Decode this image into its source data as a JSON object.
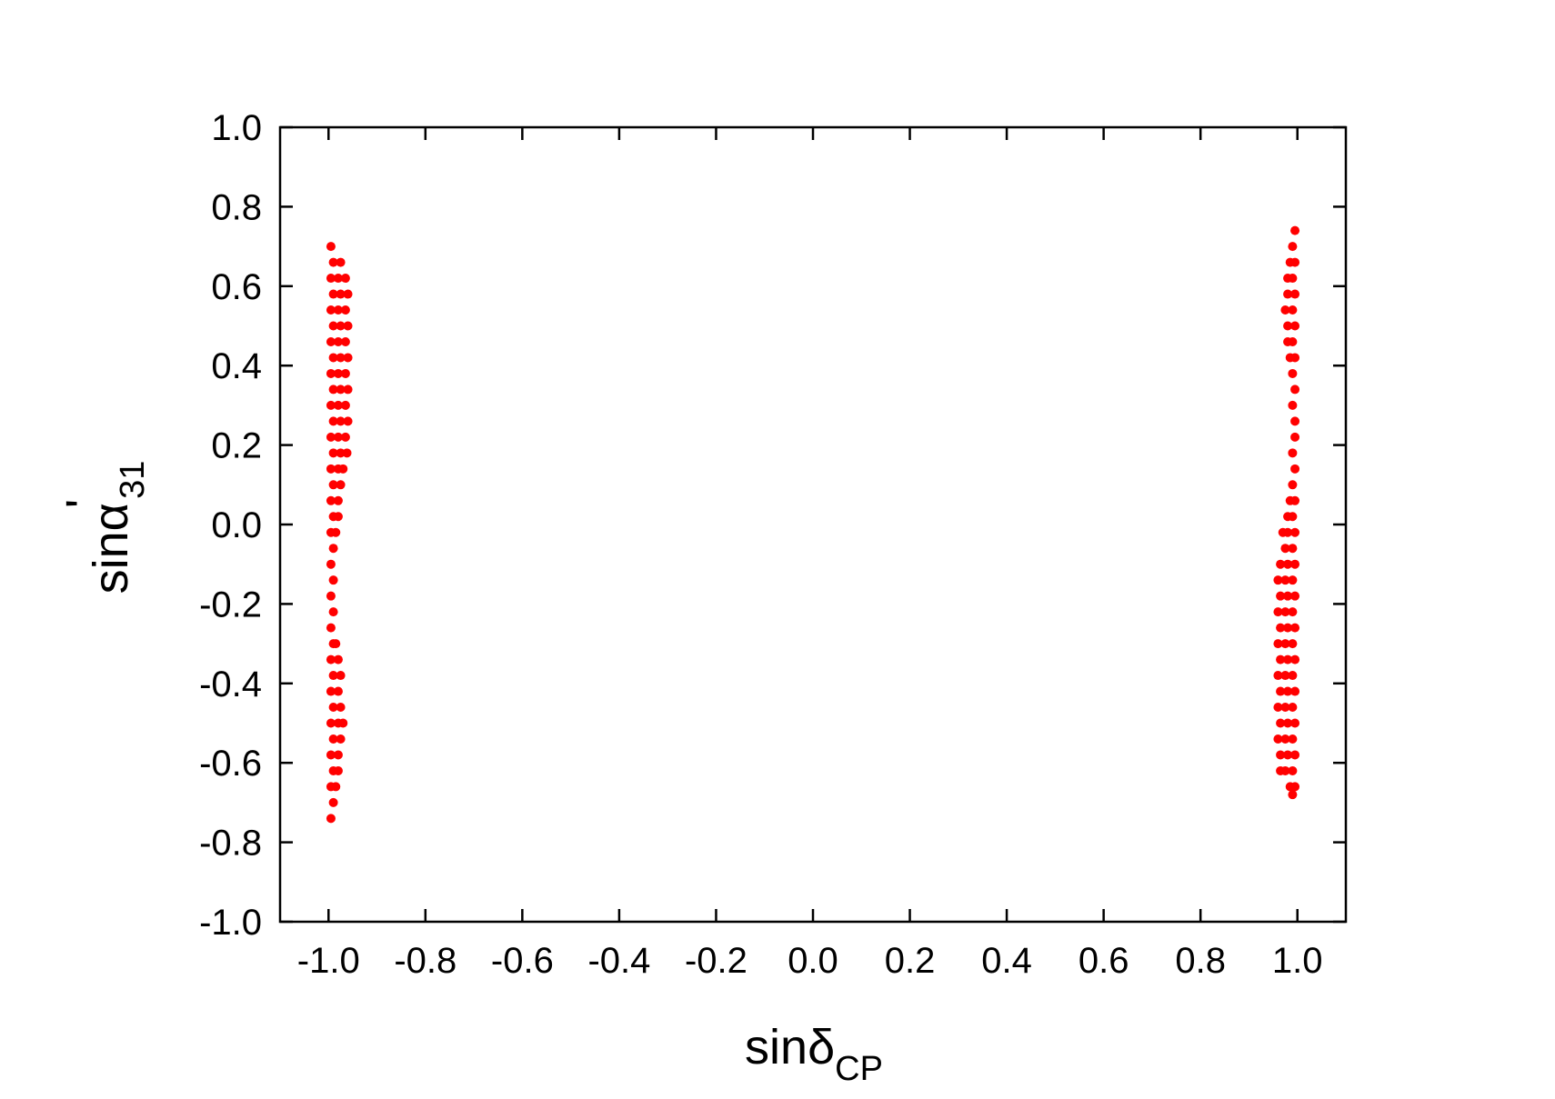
{
  "chart_data": {
    "type": "scatter",
    "x_label": "sinδ",
    "x_label_sub": "CP",
    "y_label": "sinα",
    "y_label_prime": "'",
    "y_label_sub": "31",
    "xlim": [
      -1.1,
      1.1
    ],
    "ylim": [
      -1.0,
      1.0
    ],
    "xticks": [
      {
        "value": -1.0,
        "label": "-1.0"
      },
      -0.8,
      -0.6,
      -0.4,
      -0.2,
      {
        "value": 0,
        "label": "0.0"
      },
      0.2,
      0.4,
      0.6,
      0.8,
      {
        "value": 1.0,
        "label": "1.0"
      }
    ],
    "yticks": [
      {
        "value": -1.0,
        "label": "-1.0"
      },
      -0.8,
      -0.6,
      -0.4,
      -0.2,
      {
        "value": 0,
        "label": "0.0"
      },
      0.2,
      0.4,
      0.6,
      0.8,
      {
        "value": 1.0,
        "label": "1.0"
      }
    ],
    "grid": false,
    "series": [
      {
        "color": "#ff0000",
        "x": [
          -0.995,
          -0.99,
          -0.975,
          -0.995,
          -0.98,
          -0.965,
          -0.99,
          -0.975,
          -0.96,
          -0.995,
          -0.98,
          -0.965,
          -0.99,
          -0.975,
          -0.96,
          -0.995,
          -0.98,
          -0.965,
          -0.99,
          -0.975,
          -0.96,
          -0.995,
          -0.98,
          -0.965,
          -0.99,
          -0.975,
          -0.96,
          -0.995,
          -0.98,
          -0.965,
          -0.99,
          -0.975,
          -0.96,
          -0.995,
          -0.98,
          -0.965,
          -0.99,
          -0.975,
          -0.962,
          -0.995,
          -0.98,
          -0.97,
          -0.99,
          -0.975,
          -0.995,
          -0.98,
          -0.99,
          -0.98,
          -0.995,
          -0.985,
          -0.99,
          -0.995,
          -0.99,
          -0.995,
          -0.99,
          -0.995,
          -0.99,
          -0.985,
          -0.995,
          -0.98,
          -0.99,
          -0.975,
          -0.995,
          -0.98,
          -0.99,
          -0.975,
          -0.995,
          -0.98,
          -0.97,
          -0.99,
          -0.975,
          -0.995,
          -0.98,
          -0.99,
          -0.98,
          -0.995,
          -0.985,
          -0.99,
          -0.995
        ],
        "y": [
          0.7,
          0.66,
          0.66,
          0.62,
          0.62,
          0.62,
          0.58,
          0.58,
          0.58,
          0.54,
          0.54,
          0.54,
          0.5,
          0.5,
          0.5,
          0.46,
          0.46,
          0.46,
          0.42,
          0.42,
          0.42,
          0.38,
          0.38,
          0.38,
          0.34,
          0.34,
          0.34,
          0.3,
          0.3,
          0.3,
          0.26,
          0.26,
          0.26,
          0.22,
          0.22,
          0.22,
          0.18,
          0.18,
          0.18,
          0.14,
          0.14,
          0.14,
          0.1,
          0.1,
          0.06,
          0.06,
          0.02,
          0.02,
          -0.02,
          -0.02,
          -0.06,
          -0.1,
          -0.14,
          -0.18,
          -0.22,
          -0.26,
          -0.3,
          -0.3,
          -0.34,
          -0.34,
          -0.38,
          -0.38,
          -0.42,
          -0.42,
          -0.46,
          -0.46,
          -0.5,
          -0.5,
          -0.5,
          -0.54,
          -0.54,
          -0.58,
          -0.58,
          -0.62,
          -0.62,
          -0.66,
          -0.66,
          -0.7,
          -0.74
        ]
      },
      {
        "color": "#ff0000",
        "x": [
          0.995,
          0.99,
          0.995,
          0.985,
          0.99,
          0.98,
          0.995,
          0.98,
          0.99,
          0.975,
          0.995,
          0.98,
          0.99,
          0.98,
          0.995,
          0.985,
          0.99,
          0.995,
          0.99,
          0.995,
          0.995,
          0.99,
          0.995,
          0.99,
          0.995,
          0.985,
          0.99,
          0.98,
          0.995,
          0.98,
          0.97,
          0.99,
          0.975,
          0.995,
          0.98,
          0.965,
          0.99,
          0.975,
          0.96,
          0.995,
          0.98,
          0.965,
          0.99,
          0.975,
          0.96,
          0.995,
          0.98,
          0.965,
          0.99,
          0.975,
          0.96,
          0.995,
          0.98,
          0.965,
          0.99,
          0.975,
          0.96,
          0.995,
          0.98,
          0.965,
          0.99,
          0.975,
          0.96,
          0.995,
          0.98,
          0.965,
          0.99,
          0.975,
          0.96,
          0.995,
          0.98,
          0.965,
          0.99,
          0.975,
          0.965,
          0.995,
          0.985,
          0.99
        ],
        "y": [
          0.74,
          0.7,
          0.66,
          0.66,
          0.62,
          0.62,
          0.58,
          0.58,
          0.54,
          0.54,
          0.5,
          0.5,
          0.46,
          0.46,
          0.42,
          0.42,
          0.38,
          0.34,
          0.3,
          0.26,
          0.22,
          0.18,
          0.14,
          0.1,
          0.06,
          0.06,
          0.02,
          0.02,
          -0.02,
          -0.02,
          -0.02,
          -0.06,
          -0.06,
          -0.1,
          -0.1,
          -0.1,
          -0.14,
          -0.14,
          -0.14,
          -0.18,
          -0.18,
          -0.18,
          -0.22,
          -0.22,
          -0.22,
          -0.26,
          -0.26,
          -0.26,
          -0.3,
          -0.3,
          -0.3,
          -0.34,
          -0.34,
          -0.34,
          -0.38,
          -0.38,
          -0.38,
          -0.42,
          -0.42,
          -0.42,
          -0.46,
          -0.46,
          -0.46,
          -0.5,
          -0.5,
          -0.5,
          -0.54,
          -0.54,
          -0.54,
          -0.58,
          -0.58,
          -0.58,
          -0.62,
          -0.62,
          -0.62,
          -0.66,
          -0.66,
          -0.68
        ]
      }
    ]
  }
}
